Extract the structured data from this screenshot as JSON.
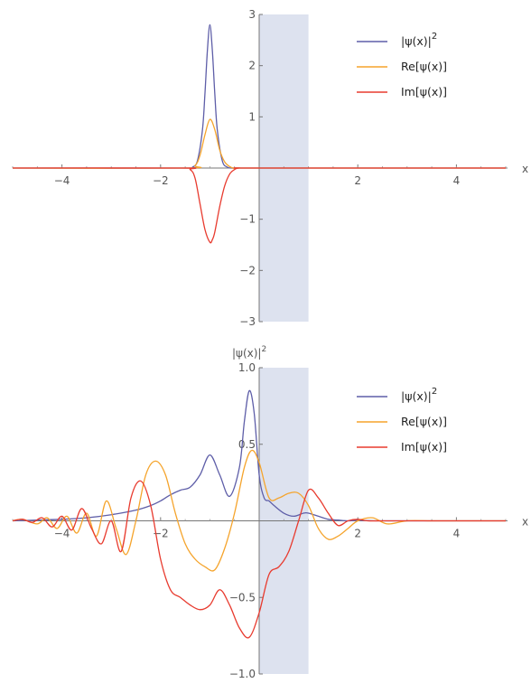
{
  "chart_data": [
    {
      "type": "line",
      "xlabel": "x",
      "ylabel": "",
      "xlim": [
        -5,
        5
      ],
      "ylim": [
        -3,
        3
      ],
      "x_ticks": [
        -4,
        -2,
        2,
        4
      ],
      "x_tick_labels": [
        "−4",
        "−2",
        "2",
        "4"
      ],
      "y_ticks": [
        -3,
        -2,
        -1,
        1,
        2,
        3
      ],
      "y_tick_labels": [
        "−3",
        "−2",
        "−1",
        "1",
        "2",
        "3"
      ],
      "barrier": {
        "x0": 0,
        "x1": 1,
        "color": "#dde2ef"
      },
      "legend_position": "top-right",
      "series": [
        {
          "name": "|ψ(x)|",
          "superscript": "2",
          "color": "#5e5ea8",
          "x": [
            -5,
            -1.5,
            -1.35,
            -1.25,
            -1.15,
            -1.1,
            -1.05,
            -1.0,
            -0.95,
            -0.9,
            -0.85,
            -0.75,
            -0.65,
            -0.5,
            0,
            5
          ],
          "y": [
            0,
            0,
            0.02,
            0.15,
            0.75,
            1.45,
            2.3,
            2.8,
            2.3,
            1.45,
            0.75,
            0.15,
            0.02,
            0,
            0,
            0
          ]
        },
        {
          "name": "Re[ψ(x)]",
          "color": "#f5a42c",
          "x": [
            -5,
            -1.5,
            -1.3,
            -1.2,
            -1.1,
            -1.0,
            -0.9,
            -0.8,
            -0.7,
            -0.6,
            -0.5,
            -0.4,
            0,
            5
          ],
          "y": [
            0,
            0,
            0.05,
            0.25,
            0.65,
            0.95,
            0.75,
            0.35,
            0.12,
            0.03,
            -0.01,
            0,
            0,
            0
          ]
        },
        {
          "name": "Im[ψ(x)]",
          "color": "#e83b2f",
          "x": [
            -5,
            -1.6,
            -1.4,
            -1.3,
            -1.2,
            -1.1,
            -1.0,
            -0.95,
            -0.9,
            -0.8,
            -0.7,
            -0.6,
            -0.5,
            -0.4,
            0,
            5
          ],
          "y": [
            0,
            0,
            -0.03,
            -0.2,
            -0.7,
            -1.2,
            -1.45,
            -1.4,
            -1.25,
            -0.75,
            -0.35,
            -0.12,
            -0.03,
            0,
            0,
            0
          ]
        }
      ]
    },
    {
      "type": "line",
      "xlabel": "x",
      "ylabel": "|ψ(x)|",
      "ylabel_superscript": "2",
      "xlim": [
        -5,
        5
      ],
      "ylim": [
        -1.0,
        1.0
      ],
      "x_ticks": [
        -4,
        -2,
        2,
        4
      ],
      "x_tick_labels": [
        "−4",
        "−2",
        "2",
        "4"
      ],
      "y_ticks": [
        -1.0,
        -0.5,
        0.5,
        1.0
      ],
      "y_tick_labels": [
        "−1.0",
        "−0.5",
        "0.5",
        "1.0"
      ],
      "barrier": {
        "x0": 0,
        "x1": 1,
        "color": "#dde2ef"
      },
      "legend_position": "top-right",
      "series": [
        {
          "name": "|ψ(x)|",
          "superscript": "2",
          "color": "#5e5ea8",
          "x": [
            -5,
            -4.5,
            -4,
            -3.5,
            -3,
            -2.5,
            -2.2,
            -2,
            -1.8,
            -1.6,
            -1.4,
            -1.2,
            -1.0,
            -0.8,
            -0.6,
            -0.4,
            -0.3,
            -0.2,
            -0.1,
            0,
            0.1,
            0.2,
            0.3,
            0.5,
            0.7,
            0.9,
            1.0,
            1.2,
            1.4,
            1.6,
            1.8,
            2.0,
            2.5,
            3,
            4,
            5
          ],
          "y": [
            0,
            0.005,
            0.01,
            0.02,
            0.04,
            0.07,
            0.1,
            0.13,
            0.17,
            0.2,
            0.22,
            0.3,
            0.43,
            0.3,
            0.16,
            0.35,
            0.65,
            0.85,
            0.7,
            0.3,
            0.15,
            0.13,
            0.1,
            0.05,
            0.03,
            0.05,
            0.05,
            0.03,
            0.01,
            0.005,
            0,
            0.003,
            0,
            0,
            0,
            0
          ]
        },
        {
          "name": "Re[ψ(x)]",
          "color": "#f5a42c",
          "x": [
            -5,
            -4.8,
            -4.5,
            -4.3,
            -4.1,
            -3.9,
            -3.7,
            -3.5,
            -3.3,
            -3.1,
            -2.9,
            -2.7,
            -2.5,
            -2.3,
            -2.1,
            -1.9,
            -1.7,
            -1.5,
            -1.3,
            -1.1,
            -0.9,
            -0.7,
            -0.5,
            -0.3,
            -0.15,
            0,
            0.2,
            0.4,
            0.6,
            0.8,
            1.0,
            1.2,
            1.4,
            1.6,
            1.8,
            2.0,
            2.3,
            2.6,
            3.0,
            3.5,
            4,
            5
          ],
          "y": [
            0,
            0.01,
            -0.02,
            0.02,
            -0.05,
            0.03,
            -0.08,
            0.05,
            -0.1,
            0.13,
            -0.05,
            -0.22,
            0.0,
            0.3,
            0.39,
            0.3,
            0.05,
            -0.15,
            -0.25,
            -0.3,
            -0.32,
            -0.18,
            0.05,
            0.35,
            0.46,
            0.38,
            0.15,
            0.15,
            0.18,
            0.18,
            0.1,
            -0.05,
            -0.12,
            -0.1,
            -0.05,
            0,
            0.02,
            -0.02,
            0,
            0,
            0,
            0
          ]
        },
        {
          "name": "Im[ψ(x)]",
          "color": "#e83b2f",
          "x": [
            -5,
            -4.8,
            -4.6,
            -4.4,
            -4.2,
            -4.0,
            -3.8,
            -3.6,
            -3.4,
            -3.2,
            -3.0,
            -2.8,
            -2.6,
            -2.4,
            -2.2,
            -2.0,
            -1.8,
            -1.6,
            -1.4,
            -1.2,
            -1.0,
            -0.8,
            -0.6,
            -0.4,
            -0.2,
            0,
            0.2,
            0.4,
            0.6,
            0.8,
            1.0,
            1.2,
            1.4,
            1.6,
            1.8,
            2.0,
            2.2,
            2.5,
            3,
            4,
            5
          ],
          "y": [
            0,
            0.01,
            -0.01,
            0.02,
            -0.04,
            0.03,
            -0.06,
            0.08,
            -0.05,
            -0.15,
            0.0,
            -0.2,
            0.15,
            0.26,
            0.1,
            -0.25,
            -0.45,
            -0.5,
            -0.55,
            -0.58,
            -0.55,
            -0.45,
            -0.55,
            -0.7,
            -0.76,
            -0.6,
            -0.35,
            -0.3,
            -0.2,
            0.0,
            0.2,
            0.15,
            0.05,
            -0.03,
            0.0,
            0.01,
            0.0,
            0.0,
            0,
            0,
            0
          ]
        }
      ]
    }
  ]
}
